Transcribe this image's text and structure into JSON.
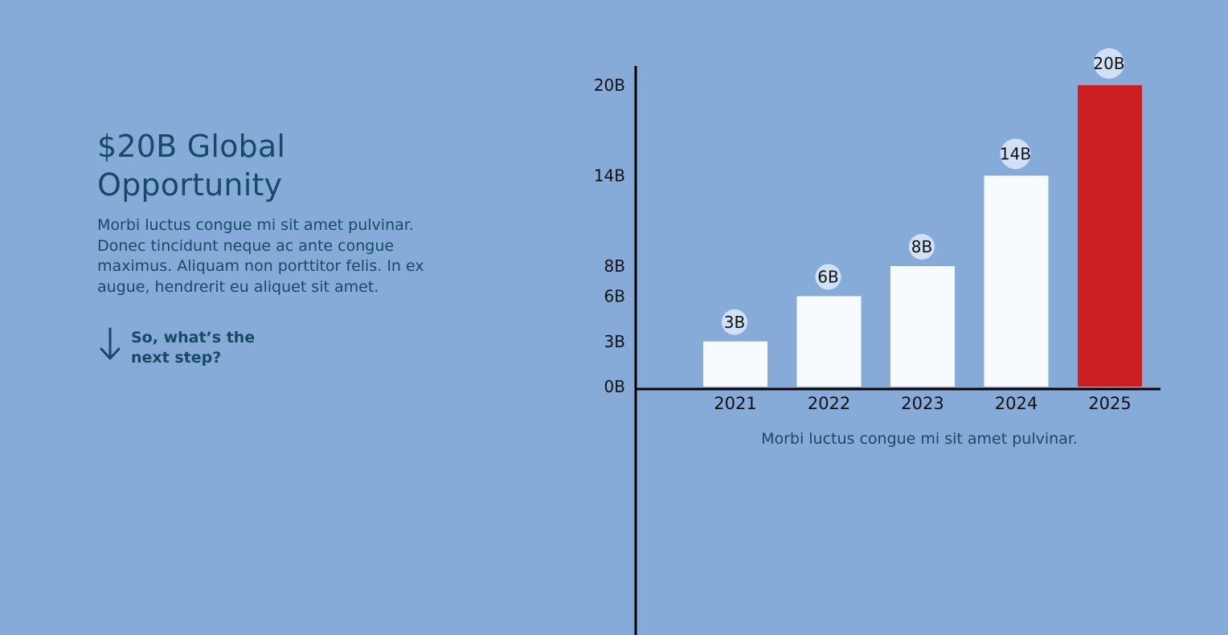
{
  "heading": {
    "line1": "$20B Global",
    "line2": "Opportunity"
  },
  "description": "Morbi luctus congue mi sit amet pulvinar. Donec tincidunt neque ac ante congue maximus. Aliquam non porttitor felis. In ex augue, hendrerit eu aliquet sit amet.",
  "next_step": {
    "label": "So, what’s the next step?",
    "icon": "arrow-down-icon"
  },
  "colors": {
    "background": "#86abd9",
    "text": "#174a66",
    "bar": "#f7faff",
    "highlight_bar": "#cc1f22",
    "label_bubble": "#d8e6f7",
    "axis": "#000000"
  },
  "chart_data": {
    "type": "bar",
    "categories": [
      "2021",
      "2022",
      "2023",
      "2024",
      "2025"
    ],
    "values": [
      3,
      6,
      8,
      14,
      20
    ],
    "data_labels": [
      "3B",
      "6B",
      "8B",
      "14B",
      "20B"
    ],
    "highlight_index": 4,
    "y_ticks": [
      {
        "value": 0,
        "label": "0B"
      },
      {
        "value": 3,
        "label": "3B"
      },
      {
        "value": 6,
        "label": "6B"
      },
      {
        "value": 8,
        "label": "8B"
      },
      {
        "value": 14,
        "label": "14B"
      },
      {
        "value": 20,
        "label": "20B"
      }
    ],
    "ylim": [
      0,
      20
    ],
    "caption": "Morbi luctus congue mi sit amet pulvinar.",
    "grid": false,
    "legend": "none"
  }
}
